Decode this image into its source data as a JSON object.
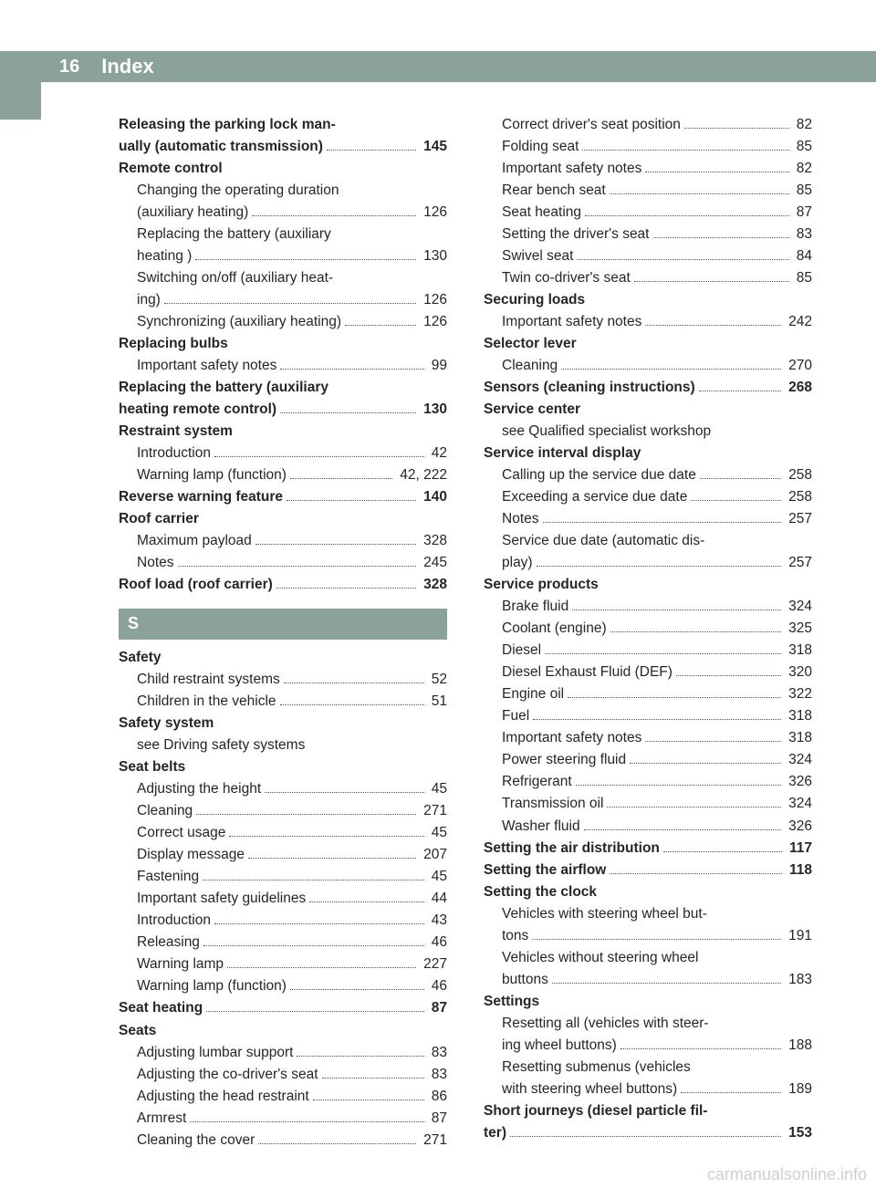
{
  "pageNumber": "16",
  "pageTitle": "Index",
  "watermark": "carmanualsonline.info",
  "colors": {
    "accent": "#8aa29a",
    "text": "#262626",
    "white": "#ffffff",
    "watermark": "#cfcfcf"
  },
  "leftColumn": [
    {
      "type": "entry",
      "label": "Releasing the parking lock man-",
      "bold": true
    },
    {
      "type": "entryp",
      "label": "ually (automatic transmission)",
      "page": "145",
      "bold": true
    },
    {
      "type": "head",
      "label": "Remote control"
    },
    {
      "type": "sub",
      "label": "Changing the operating duration"
    },
    {
      "type": "subp",
      "label": "(auxiliary heating)",
      "page": "126"
    },
    {
      "type": "sub",
      "label": "Replacing the battery (auxiliary"
    },
    {
      "type": "subp",
      "label": "heating )",
      "page": "130"
    },
    {
      "type": "sub",
      "label": "Switching on/off (auxiliary heat-"
    },
    {
      "type": "subp",
      "label": "ing)",
      "page": "126"
    },
    {
      "type": "subp",
      "label": "Synchronizing (auxiliary heating)",
      "page": "126"
    },
    {
      "type": "head",
      "label": "Replacing bulbs"
    },
    {
      "type": "subp",
      "label": "Important safety notes",
      "page": "99"
    },
    {
      "type": "entry",
      "label": "Replacing the battery (auxiliary",
      "bold": true
    },
    {
      "type": "entryp",
      "label": "heating remote control)",
      "page": "130",
      "bold": true
    },
    {
      "type": "head",
      "label": "Restraint system"
    },
    {
      "type": "subp",
      "label": "Introduction",
      "page": "42"
    },
    {
      "type": "subp",
      "label": "Warning lamp (function)",
      "page": "42, 222"
    },
    {
      "type": "entryp",
      "label": "Reverse warning feature",
      "page": "140",
      "bold": true
    },
    {
      "type": "head",
      "label": "Roof carrier"
    },
    {
      "type": "subp",
      "label": "Maximum payload",
      "page": "328"
    },
    {
      "type": "subp",
      "label": "Notes",
      "page": "245"
    },
    {
      "type": "entryp",
      "label": "Roof load (roof carrier)",
      "page": "328",
      "bold": true
    },
    {
      "type": "section",
      "label": "S"
    },
    {
      "type": "head",
      "label": "Safety"
    },
    {
      "type": "subp",
      "label": "Child restraint systems",
      "page": "52"
    },
    {
      "type": "subp",
      "label": "Children in the vehicle",
      "page": "51"
    },
    {
      "type": "head",
      "label": "Safety system"
    },
    {
      "type": "noref",
      "label": "see Driving safety systems"
    },
    {
      "type": "head",
      "label": "Seat belts"
    },
    {
      "type": "subp",
      "label": "Adjusting the height",
      "page": "45"
    },
    {
      "type": "subp",
      "label": "Cleaning",
      "page": "271"
    },
    {
      "type": "subp",
      "label": "Correct usage",
      "page": "45"
    },
    {
      "type": "subp",
      "label": "Display message",
      "page": "207"
    },
    {
      "type": "subp",
      "label": "Fastening",
      "page": "45"
    },
    {
      "type": "subp",
      "label": "Important safety guidelines",
      "page": "44"
    },
    {
      "type": "subp",
      "label": "Introduction",
      "page": "43"
    },
    {
      "type": "subp",
      "label": "Releasing",
      "page": "46"
    },
    {
      "type": "subp",
      "label": "Warning lamp",
      "page": "227"
    },
    {
      "type": "subp",
      "label": "Warning lamp (function)",
      "page": "46"
    },
    {
      "type": "entryp",
      "label": "Seat heating",
      "page": "87",
      "bold": true
    },
    {
      "type": "head",
      "label": "Seats"
    },
    {
      "type": "subp",
      "label": "Adjusting lumbar support",
      "page": "83"
    },
    {
      "type": "subp",
      "label": "Adjusting the co-driver's seat",
      "page": "83"
    },
    {
      "type": "subp",
      "label": "Adjusting the head restraint",
      "page": "86"
    },
    {
      "type": "subp",
      "label": "Armrest",
      "page": "87"
    },
    {
      "type": "subp",
      "label": "Cleaning the cover",
      "page": "271"
    }
  ],
  "rightColumn": [
    {
      "type": "subp",
      "label": "Correct driver's seat position",
      "page": "82"
    },
    {
      "type": "subp",
      "label": "Folding seat",
      "page": "85"
    },
    {
      "type": "subp",
      "label": "Important safety notes",
      "page": "82"
    },
    {
      "type": "subp",
      "label": "Rear bench seat",
      "page": "85"
    },
    {
      "type": "subp",
      "label": "Seat heating",
      "page": "87"
    },
    {
      "type": "subp",
      "label": "Setting the driver's seat",
      "page": "83"
    },
    {
      "type": "subp",
      "label": "Swivel seat",
      "page": "84"
    },
    {
      "type": "subp",
      "label": "Twin co-driver's seat",
      "page": "85"
    },
    {
      "type": "head",
      "label": "Securing loads"
    },
    {
      "type": "subp",
      "label": "Important safety notes",
      "page": "242"
    },
    {
      "type": "head",
      "label": "Selector lever"
    },
    {
      "type": "subp",
      "label": "Cleaning",
      "page": "270"
    },
    {
      "type": "entryp",
      "label": "Sensors (cleaning instructions)",
      "page": "268",
      "bold": true
    },
    {
      "type": "head",
      "label": "Service center"
    },
    {
      "type": "noref",
      "label": "see Qualified specialist workshop"
    },
    {
      "type": "head",
      "label": "Service interval display"
    },
    {
      "type": "subp",
      "label": "Calling up the service due date",
      "page": "258"
    },
    {
      "type": "subp",
      "label": "Exceeding a service due date",
      "page": "258"
    },
    {
      "type": "subp",
      "label": "Notes",
      "page": "257"
    },
    {
      "type": "sub",
      "label": "Service due date (automatic dis-"
    },
    {
      "type": "subp",
      "label": "play)",
      "page": "257"
    },
    {
      "type": "head",
      "label": "Service products"
    },
    {
      "type": "subp",
      "label": "Brake fluid",
      "page": "324"
    },
    {
      "type": "subp",
      "label": "Coolant (engine)",
      "page": "325"
    },
    {
      "type": "subp",
      "label": "Diesel",
      "page": "318"
    },
    {
      "type": "subp",
      "label": "Diesel Exhaust Fluid (DEF)",
      "page": "320"
    },
    {
      "type": "subp",
      "label": "Engine oil",
      "page": "322"
    },
    {
      "type": "subp",
      "label": "Fuel",
      "page": "318"
    },
    {
      "type": "subp",
      "label": "Important safety notes",
      "page": "318"
    },
    {
      "type": "subp",
      "label": "Power steering fluid",
      "page": "324"
    },
    {
      "type": "subp",
      "label": "Refrigerant",
      "page": "326"
    },
    {
      "type": "subp",
      "label": "Transmission oil",
      "page": "324"
    },
    {
      "type": "subp",
      "label": "Washer fluid",
      "page": "326"
    },
    {
      "type": "entryp",
      "label": "Setting the air distribution",
      "page": "117",
      "bold": true
    },
    {
      "type": "entryp",
      "label": "Setting the airflow",
      "page": "118",
      "bold": true
    },
    {
      "type": "head",
      "label": "Setting the clock"
    },
    {
      "type": "sub",
      "label": "Vehicles with steering wheel but-"
    },
    {
      "type": "subp",
      "label": "tons",
      "page": "191"
    },
    {
      "type": "sub",
      "label": "Vehicles without steering wheel"
    },
    {
      "type": "subp",
      "label": "buttons",
      "page": "183"
    },
    {
      "type": "head",
      "label": "Settings"
    },
    {
      "type": "sub",
      "label": "Resetting all (vehicles with steer-"
    },
    {
      "type": "subp",
      "label": "ing wheel buttons)",
      "page": "188"
    },
    {
      "type": "sub",
      "label": "Resetting submenus (vehicles"
    },
    {
      "type": "subp",
      "label": "with steering wheel buttons)",
      "page": "189"
    },
    {
      "type": "entry",
      "label": "Short journeys (diesel particle fil-",
      "bold": true
    },
    {
      "type": "entryp",
      "label": "ter)",
      "page": "153",
      "bold": true
    }
  ]
}
